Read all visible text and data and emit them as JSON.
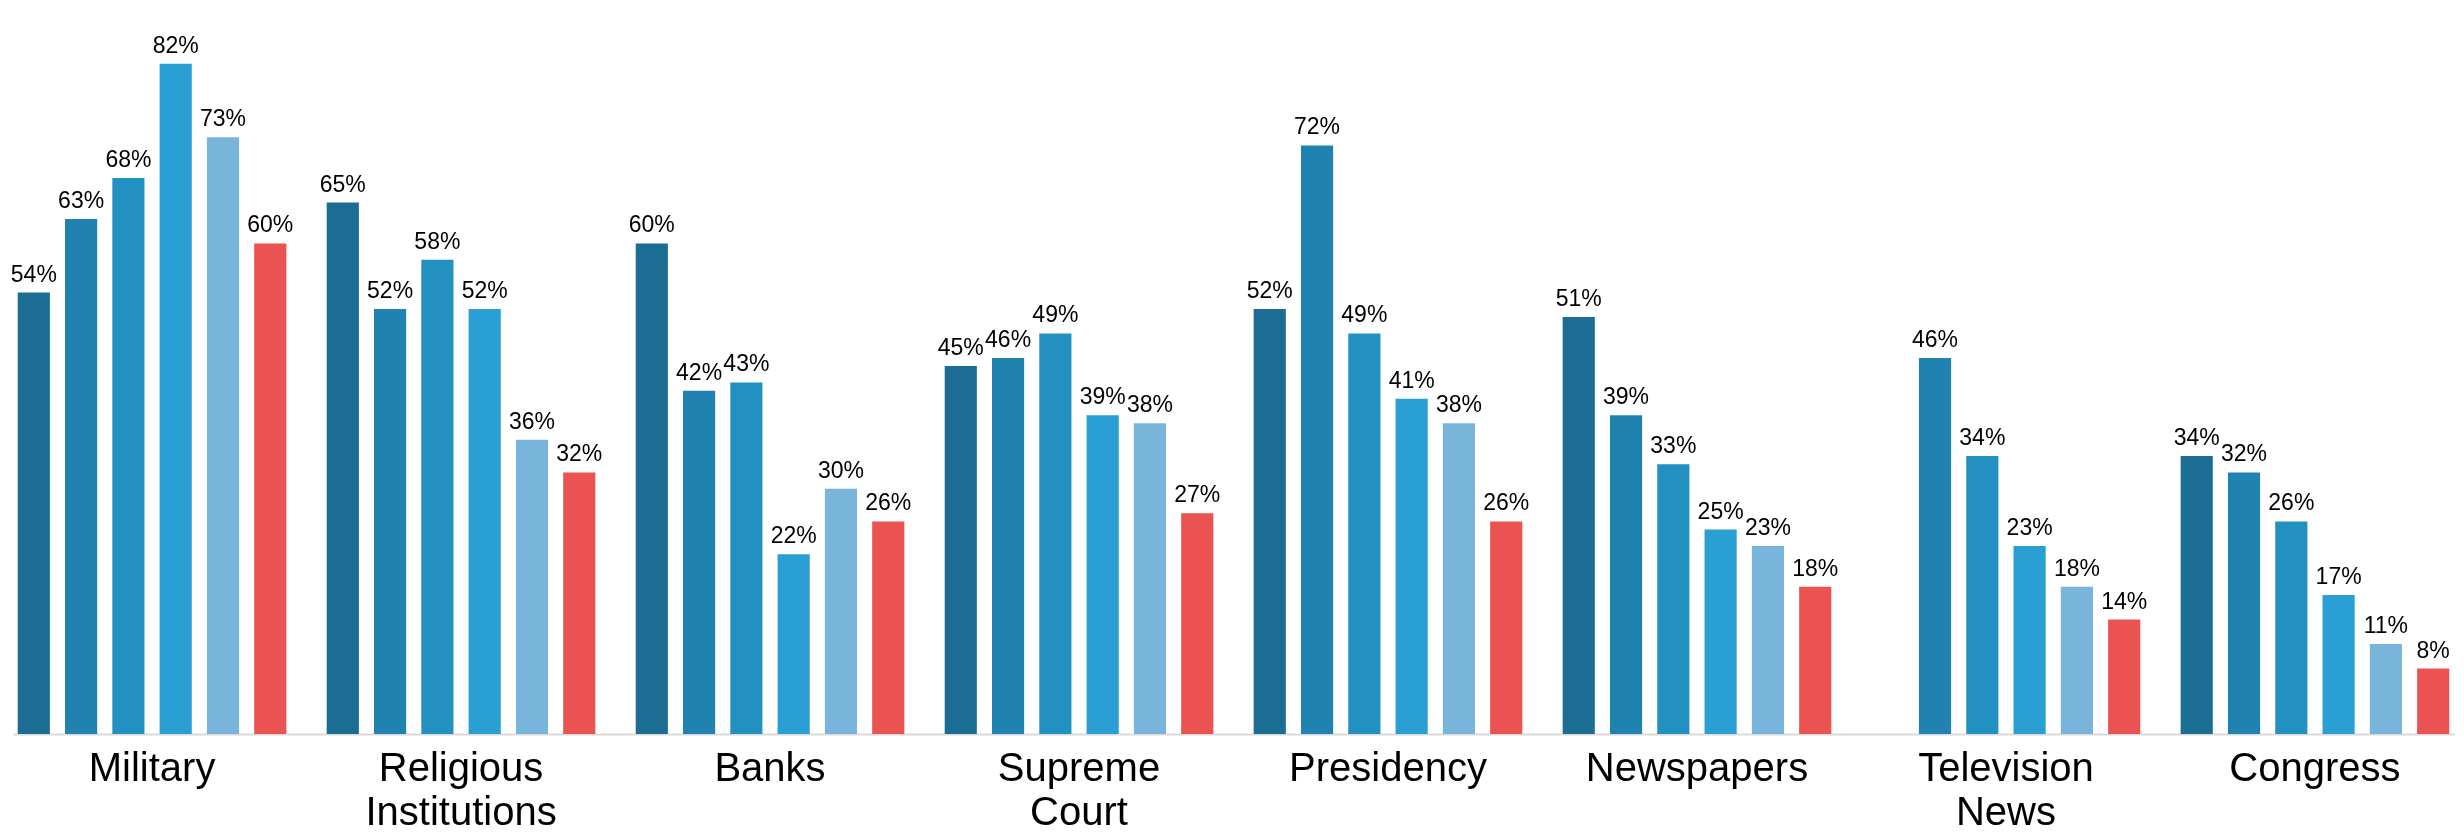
{
  "chart_data": {
    "type": "bar",
    "categories": [
      "Military",
      "Religious Institutions",
      "Banks",
      "Supreme Court",
      "Presidency",
      "Newspapers",
      "Television News",
      "Congress"
    ],
    "series": [
      {
        "color": "#1b6d94",
        "values": [
          54,
          65,
          60,
          45,
          52,
          51,
          null,
          34
        ],
        "value_labels": [
          "54%",
          "65%",
          "60%",
          "45%",
          "52%",
          "51%",
          null,
          "34%"
        ]
      },
      {
        "color": "#1f82b0",
        "values": [
          63,
          52,
          42,
          46,
          72,
          39,
          46,
          32
        ],
        "value_labels": [
          "63%",
          "52%",
          "42%",
          "46%",
          "72%",
          "39%",
          "46%",
          "32%"
        ]
      },
      {
        "color": "#2291c2",
        "values": [
          68,
          58,
          43,
          49,
          49,
          33,
          34,
          26
        ],
        "value_labels": [
          "68%",
          "58%",
          "43%",
          "49%",
          "49%",
          "33%",
          "34%",
          "26%"
        ]
      },
      {
        "color": "#299fd3",
        "values": [
          82,
          52,
          22,
          39,
          41,
          25,
          23,
          17
        ],
        "value_labels": [
          "82%",
          "52%",
          "22%",
          "39%",
          "41%",
          "25%",
          "23%",
          "17%"
        ]
      },
      {
        "color": "#79b4da",
        "values": [
          73,
          36,
          30,
          38,
          38,
          23,
          18,
          11
        ],
        "value_labels": [
          "73%",
          "36%",
          "30%",
          "38%",
          "38%",
          "23%",
          "18%",
          "11%"
        ]
      },
      {
        "color": "#eb5353",
        "values": [
          60,
          32,
          26,
          27,
          26,
          18,
          14,
          8
        ],
        "value_labels": [
          "60%",
          "32%",
          "26%",
          "27%",
          "26%",
          "18%",
          "14%",
          "8%"
        ]
      }
    ],
    "grid": false,
    "legend": false
  }
}
